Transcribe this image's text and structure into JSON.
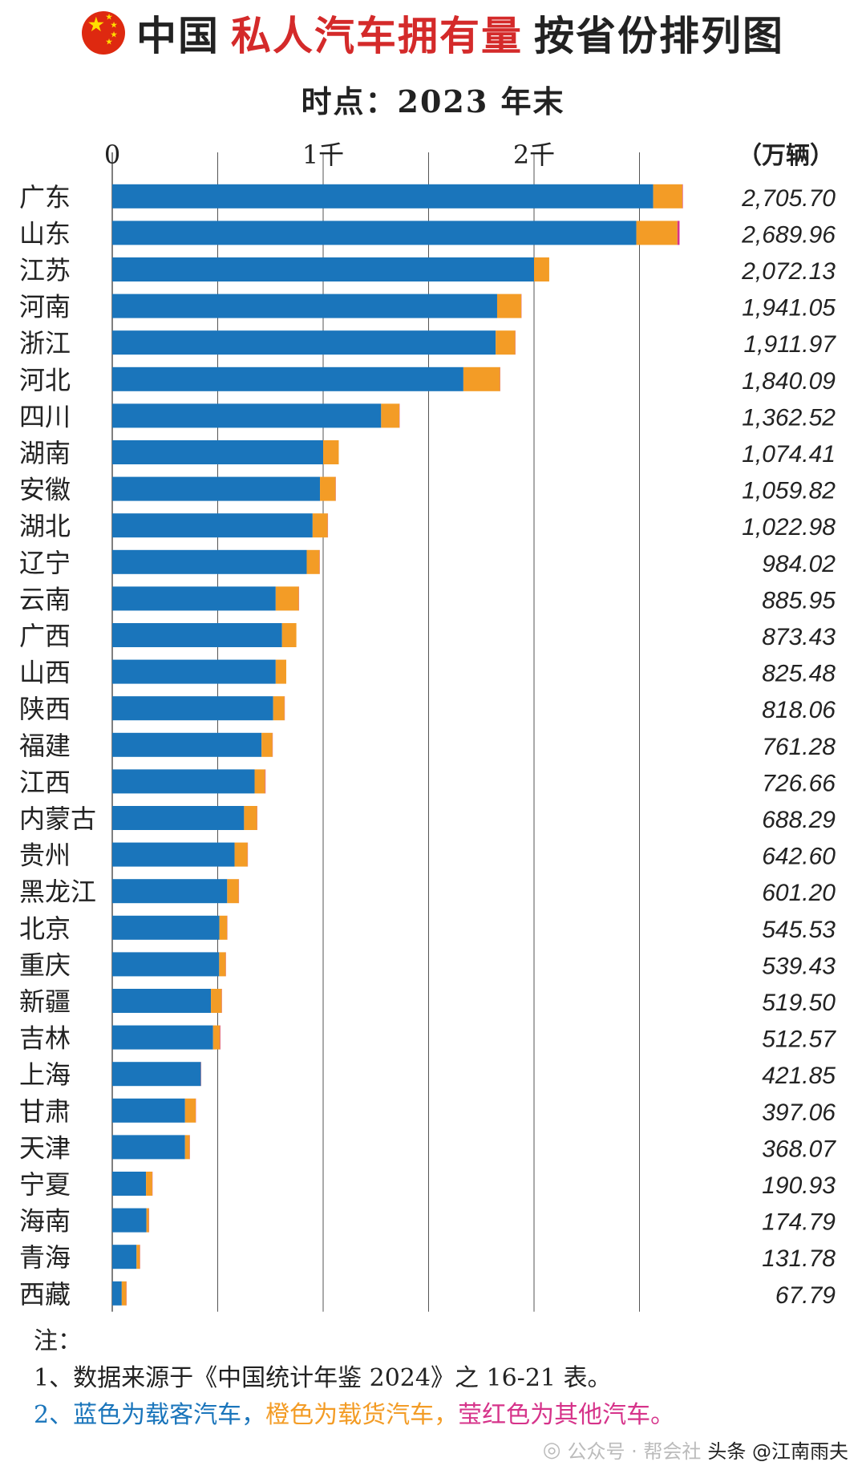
{
  "title": {
    "flag_icon": "china-flag-icon",
    "prefix": "中国",
    "highlight": "私人汽车拥有量",
    "suffix": "按省份排列图",
    "highlight_color": "#d42a2a"
  },
  "subtitle": "时点：2023 年末",
  "unit_label": "（万辆）",
  "colors": {
    "passenger": "#1a75bb",
    "truck": "#f39c26",
    "other": "#d6338a",
    "grid": "#555555"
  },
  "notes": {
    "head": "注：",
    "line1": "1、数据来源于《中国统计年鉴 2024》之 16-21 表。",
    "line2_blue": "2、蓝色为载客汽车，",
    "line2_orange": "橙色为载货汽车，",
    "line2_magenta": "莹红色为其他汽车。"
  },
  "watermark": {
    "faint": "公众号 · 帮会社",
    "text": "头条 @江南雨夫"
  },
  "chart_data": {
    "type": "bar",
    "orientation": "horizontal",
    "stacked": true,
    "unit": "万辆",
    "xlim": [
      0,
      2800
    ],
    "x_ticks": [
      0,
      1000,
      2000
    ],
    "x_tick_labels": [
      "0",
      "1千",
      "2千"
    ],
    "gridlines": [
      0,
      500,
      1000,
      1500,
      2000,
      2500
    ],
    "series_colors": [
      "#1a75bb",
      "#f39c26",
      "#d6338a"
    ],
    "categories": [
      "广东",
      "山东",
      "江苏",
      "河南",
      "浙江",
      "河北",
      "四川",
      "湖南",
      "安徽",
      "湖北",
      "辽宁",
      "云南",
      "广西",
      "山西",
      "陕西",
      "福建",
      "江西",
      "内蒙古",
      "贵州",
      "黑龙江",
      "北京",
      "重庆",
      "新疆",
      "吉林",
      "上海",
      "甘肃",
      "天津",
      "宁夏",
      "海南",
      "青海",
      "西藏"
    ],
    "totals": [
      "2,705.70",
      "2,689.96",
      "2,072.13",
      "1,941.05",
      "1,911.97",
      "1,840.09",
      "1,362.52",
      "1,074.41",
      "1,059.82",
      "1,022.98",
      "984.02",
      "885.95",
      "873.43",
      "825.48",
      "818.06",
      "761.28",
      "726.66",
      "688.29",
      "642.60",
      "601.20",
      "545.53",
      "539.43",
      "519.50",
      "512.57",
      "421.85",
      "397.06",
      "368.07",
      "190.93",
      "174.79",
      "131.78",
      "67.79"
    ],
    "series": [
      {
        "name": "载客汽车",
        "values": [
          2565,
          2485,
          2000,
          1825,
          1818,
          1665,
          1275,
          1000,
          985,
          950,
          922,
          775,
          805,
          775,
          763,
          708,
          675,
          625,
          580,
          545,
          508,
          507,
          468,
          478,
          420,
          345,
          345,
          160,
          162,
          115,
          45
        ]
      },
      {
        "name": "载货汽车",
        "values": [
          139,
          195,
          72,
          115,
          93,
          174,
          87,
          74,
          74,
          72,
          61,
          110,
          68,
          50,
          54,
          52,
          50,
          62,
          62,
          55,
          37,
          31,
          51,
          33,
          1,
          51,
          22,
          30,
          12,
          16,
          22
        ]
      },
      {
        "name": "其他汽车",
        "values": [
          2,
          10,
          0,
          1,
          1,
          1,
          1,
          0,
          1,
          1,
          1,
          1,
          0,
          0,
          1,
          1,
          2,
          1,
          1,
          1,
          1,
          1,
          1,
          2,
          1,
          1,
          1,
          1,
          1,
          1,
          1
        ]
      }
    ]
  }
}
